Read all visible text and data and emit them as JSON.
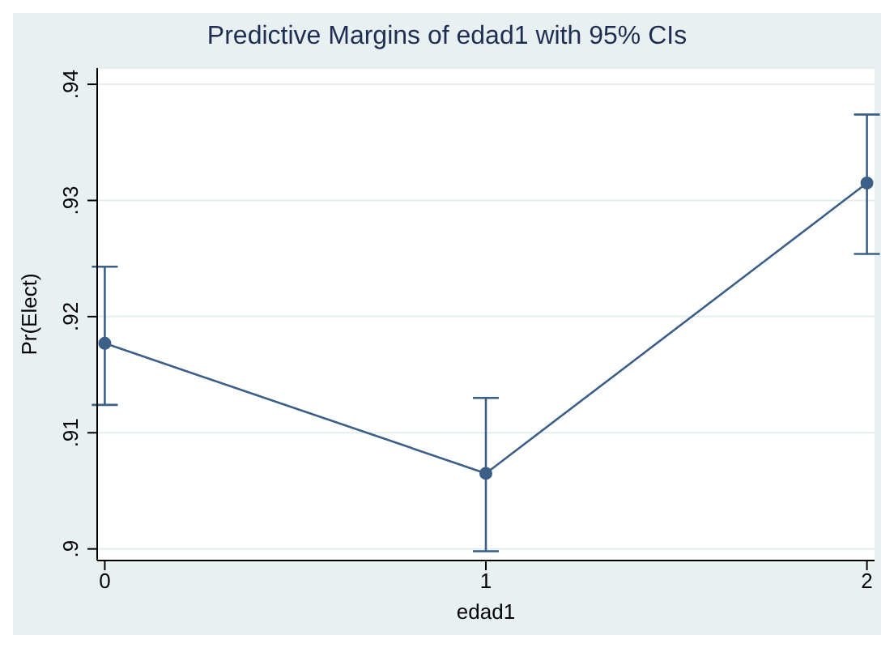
{
  "chart_data": {
    "type": "line",
    "title": "Predictive Margins of edad1 with 95% CIs",
    "xlabel": "edad1",
    "ylabel": "Pr(Elect)",
    "x": [
      0,
      1,
      2
    ],
    "series": [
      {
        "color": "#3b5f86",
        "values": [
          0.9177,
          0.9065,
          0.9315
        ],
        "errors": [
          [
            0.9124,
            0.9243
          ],
          [
            0.8998,
            0.913
          ],
          [
            0.9254,
            0.9374
          ]
        ]
      }
    ],
    "xlim": [
      -0.02,
      2.02
    ],
    "xticks": [
      0,
      1,
      2
    ],
    "ylim": [
      0.899,
      0.9414
    ],
    "yticks": [
      {
        "value": 0.9,
        "label": ".9"
      },
      {
        "value": 0.91,
        "label": ".91"
      },
      {
        "value": 0.92,
        "label": ".92"
      },
      {
        "value": 0.93,
        "label": ".93"
      },
      {
        "value": 0.94,
        "label": ".94"
      }
    ],
    "grid": "y",
    "marker": "circle",
    "line_style": "solid"
  }
}
